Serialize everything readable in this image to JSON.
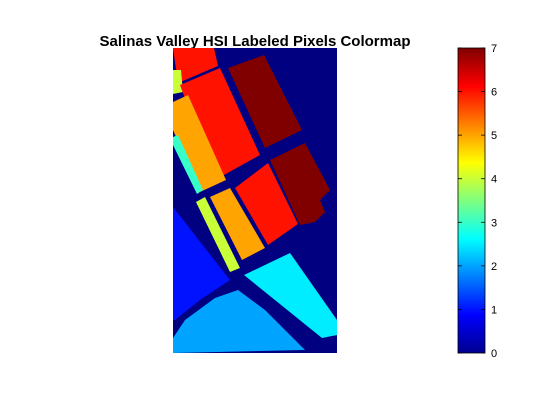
{
  "chart_data": {
    "type": "heatmap",
    "title": "Salinas Valley HSI Labeled Pixels Colormap",
    "xlabel": "",
    "ylabel": "",
    "colormap": "jet",
    "colorbar": {
      "placement": "right",
      "range": [
        0,
        7
      ],
      "ticks": [
        0,
        1,
        2,
        3,
        4,
        5,
        6,
        7
      ]
    },
    "background_class": 0,
    "regions": [
      {
        "class": 6,
        "label": "6"
      },
      {
        "class": 4,
        "label": "4"
      },
      {
        "class": 6,
        "label": "6"
      },
      {
        "class": 7,
        "label": "7"
      },
      {
        "class": 5,
        "label": "5"
      },
      {
        "class": 3,
        "label": "3"
      },
      {
        "class": 4,
        "label": "4"
      },
      {
        "class": 5,
        "label": "5"
      },
      {
        "class": 6,
        "label": "6"
      },
      {
        "class": 7,
        "label": "7"
      },
      {
        "class": 1,
        "label": "1"
      },
      {
        "class": 2.5,
        "label": "2.5"
      },
      {
        "class": 2,
        "label": "2"
      }
    ],
    "grid": false
  }
}
